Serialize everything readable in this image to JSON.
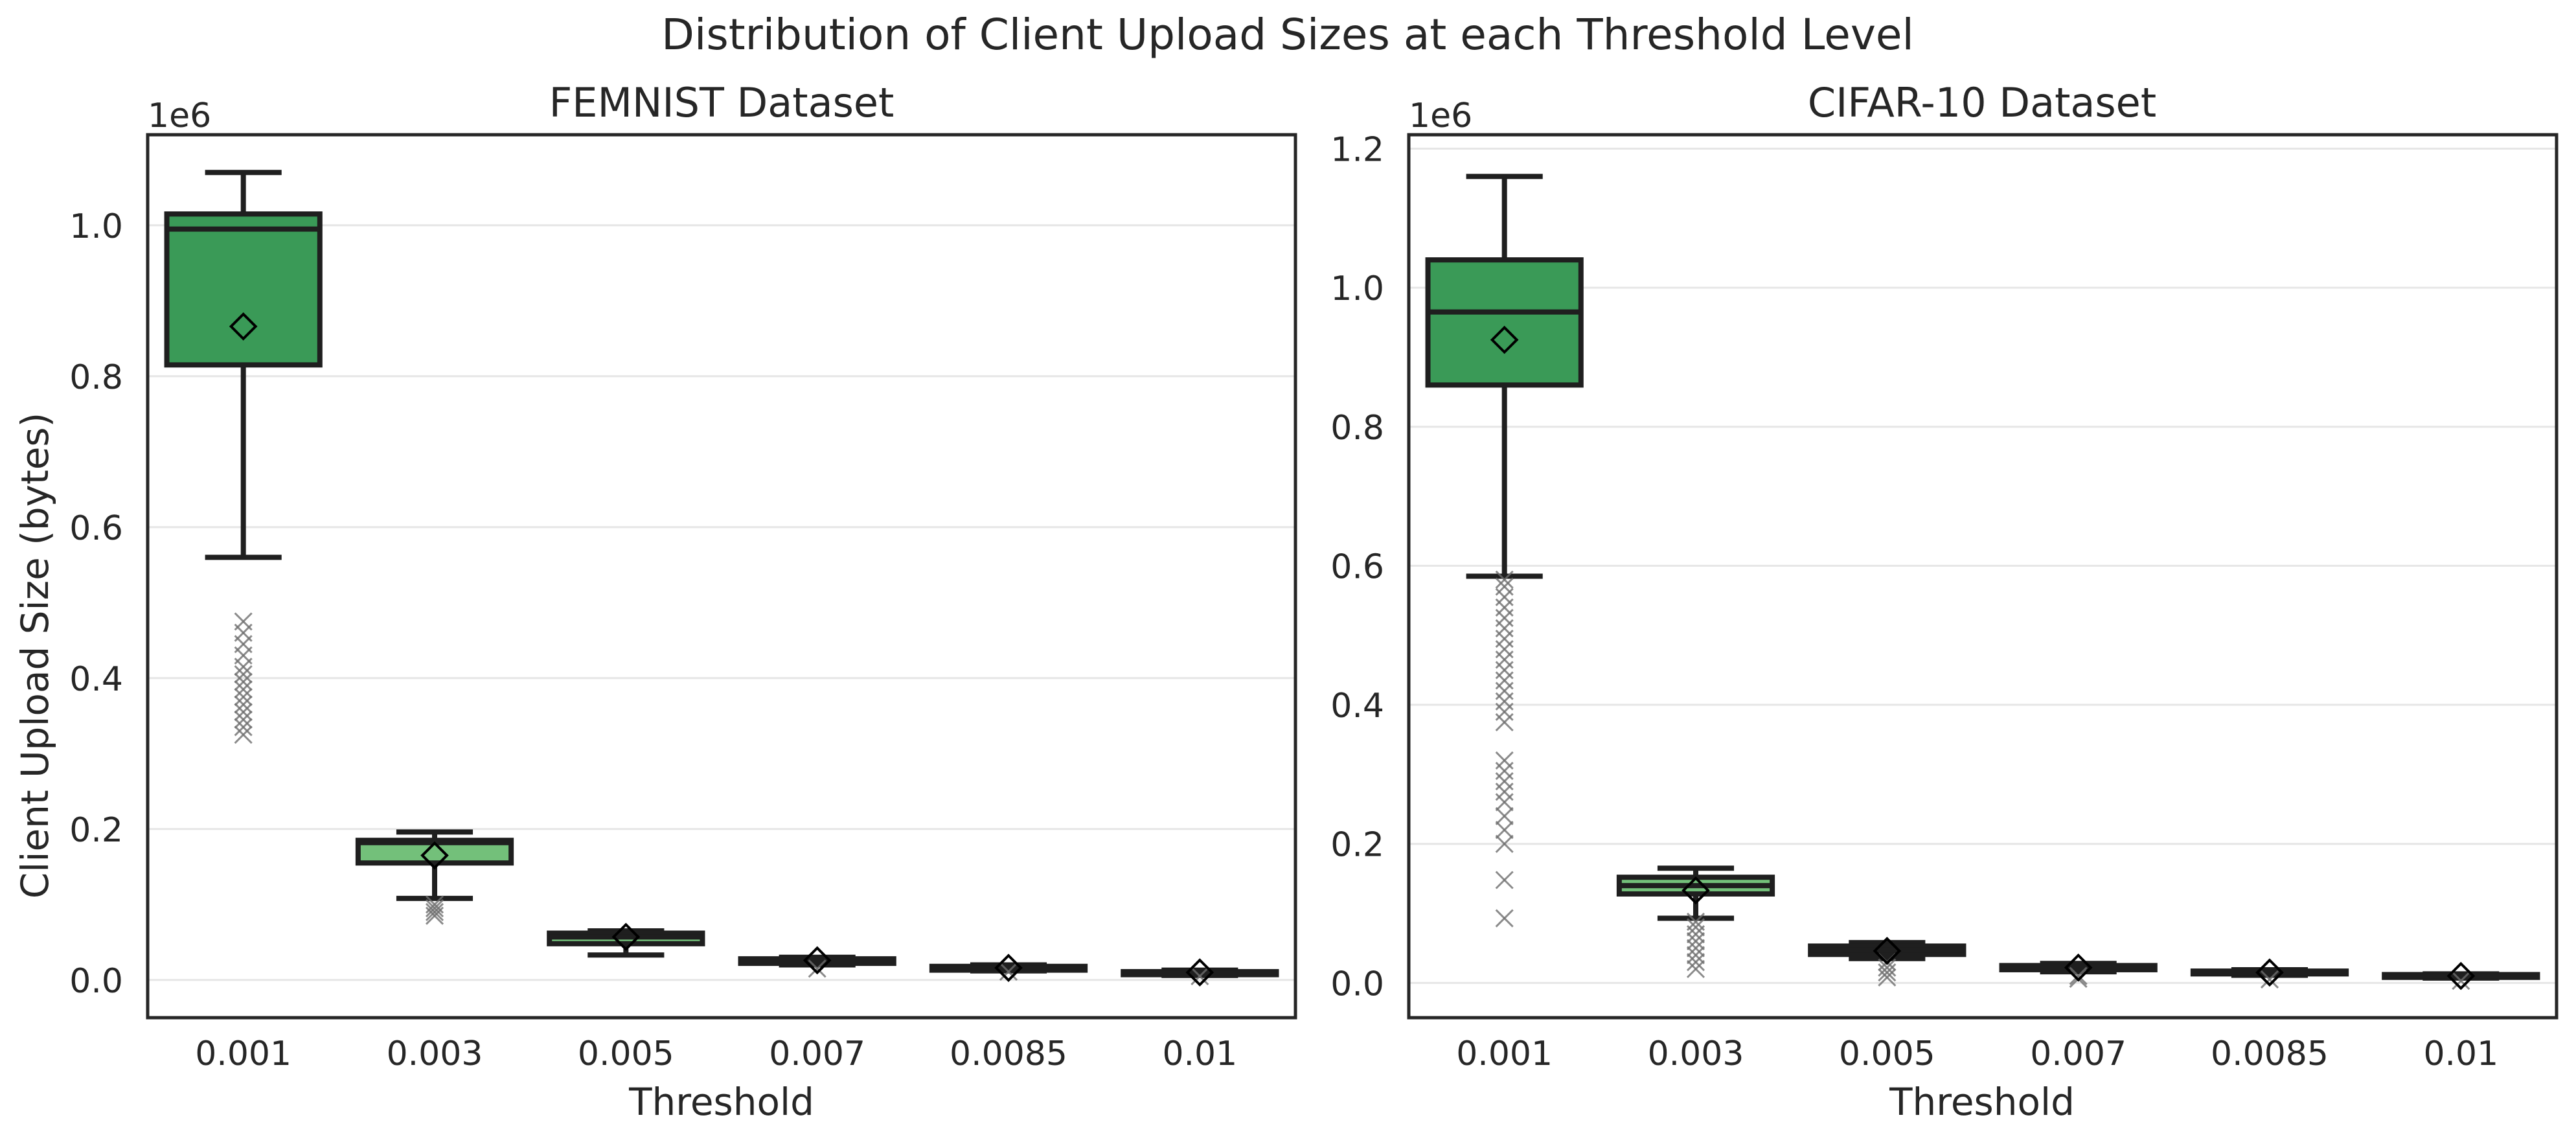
{
  "suptitle": "Distribution of Client Upload Sizes at each Threshold Level",
  "colors": {
    "box_dark": "#3a9a57",
    "box_light": "#73c07a",
    "edge": "#1f1f1f",
    "grid": "#e6e6e6",
    "flier": "#6e6e6e"
  },
  "chart_data": [
    {
      "type": "box",
      "title": "FEMNIST Dataset",
      "xlabel": "Threshold",
      "ylabel": "Client Upload Size (bytes)",
      "offset_label": "1e6",
      "ylim": [
        -0.05,
        1.12
      ],
      "yticks": [
        0.0,
        0.2,
        0.4,
        0.6,
        0.8,
        1.0
      ],
      "ytick_labels": [
        "0.0",
        "0.2",
        "0.4",
        "0.6",
        "0.8",
        "1.0"
      ],
      "grid": true,
      "categories": [
        "0.001",
        "0.003",
        "0.005",
        "0.007",
        "0.0085",
        "0.01"
      ],
      "boxes": [
        {
          "whislo": 0.56,
          "q1": 0.815,
          "med": 0.995,
          "q3": 1.015,
          "whishi": 1.07,
          "mean": 0.866,
          "fliers": [
            0.325,
            0.335,
            0.345,
            0.355,
            0.365,
            0.375,
            0.385,
            0.395,
            0.405,
            0.415,
            0.43,
            0.445,
            0.46,
            0.475
          ]
        },
        {
          "whislo": 0.108,
          "q1": 0.155,
          "med": 0.182,
          "q3": 0.185,
          "whishi": 0.196,
          "mean": 0.165,
          "fliers": [
            0.085,
            0.09,
            0.095,
            0.1
          ]
        },
        {
          "whislo": 0.033,
          "q1": 0.048,
          "med": 0.057,
          "q3": 0.062,
          "whishi": 0.065,
          "mean": 0.057,
          "fliers": []
        },
        {
          "whislo": 0.02,
          "q1": 0.022,
          "med": 0.026,
          "q3": 0.028,
          "whishi": 0.03,
          "mean": 0.026,
          "fliers": [
            0.015
          ]
        },
        {
          "whislo": 0.012,
          "q1": 0.013,
          "med": 0.016,
          "q3": 0.018,
          "whishi": 0.02,
          "mean": 0.016,
          "fliers": [
            0.011
          ]
        },
        {
          "whislo": 0.006,
          "q1": 0.007,
          "med": 0.009,
          "q3": 0.011,
          "whishi": 0.013,
          "mean": 0.01,
          "fliers": [
            0.005
          ]
        }
      ]
    },
    {
      "type": "box",
      "title": "CIFAR-10 Dataset",
      "xlabel": "Threshold",
      "ylabel": "",
      "offset_label": "1e6",
      "ylim": [
        -0.05,
        1.22
      ],
      "yticks": [
        0.0,
        0.2,
        0.4,
        0.6,
        0.8,
        1.0,
        1.2
      ],
      "ytick_labels": [
        "0.0",
        "0.2",
        "0.4",
        "0.6",
        "0.8",
        "1.0",
        "1.2"
      ],
      "grid": true,
      "categories": [
        "0.001",
        "0.003",
        "0.005",
        "0.007",
        "0.0085",
        "0.01"
      ],
      "boxes": [
        {
          "whislo": 0.585,
          "q1": 0.86,
          "med": 0.965,
          "q3": 1.04,
          "whishi": 1.16,
          "mean": 0.925,
          "fliers": [
            0.093,
            0.148,
            0.2,
            0.22,
            0.24,
            0.26,
            0.275,
            0.29,
            0.305,
            0.32,
            0.375,
            0.39,
            0.405,
            0.42,
            0.435,
            0.45,
            0.465,
            0.48,
            0.495,
            0.51,
            0.525,
            0.54,
            0.555,
            0.57,
            0.58
          ]
        },
        {
          "whislo": 0.093,
          "q1": 0.128,
          "med": 0.14,
          "q3": 0.152,
          "whishi": 0.165,
          "mean": 0.133,
          "fliers": [
            0.02,
            0.03,
            0.04,
            0.05,
            0.06,
            0.07,
            0.08,
            0.088
          ]
        },
        {
          "whislo": 0.035,
          "q1": 0.041,
          "med": 0.047,
          "q3": 0.053,
          "whishi": 0.058,
          "mean": 0.046,
          "fliers": [
            0.008,
            0.015,
            0.022,
            0.03
          ]
        },
        {
          "whislo": 0.016,
          "q1": 0.019,
          "med": 0.022,
          "q3": 0.025,
          "whishi": 0.028,
          "mean": 0.022,
          "fliers": [
            0.006,
            0.01
          ]
        },
        {
          "whislo": 0.011,
          "q1": 0.013,
          "med": 0.015,
          "q3": 0.017,
          "whishi": 0.019,
          "mean": 0.015,
          "fliers": [
            0.005
          ]
        },
        {
          "whislo": 0.007,
          "q1": 0.008,
          "med": 0.01,
          "q3": 0.012,
          "whishi": 0.013,
          "mean": 0.01,
          "fliers": [
            0.003
          ]
        }
      ]
    }
  ]
}
